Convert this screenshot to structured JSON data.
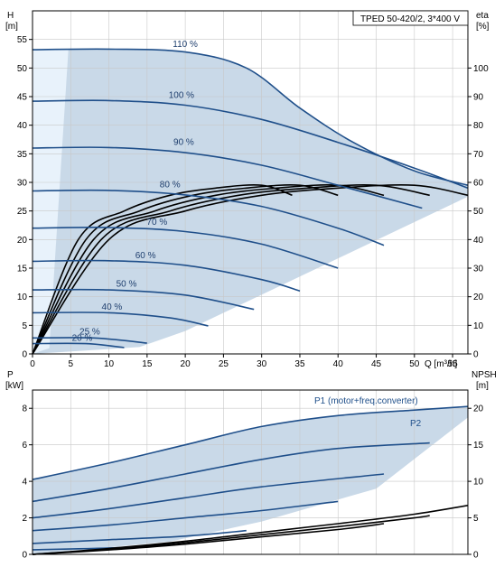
{
  "chart_data": [
    {
      "type": "line",
      "title": "TPED 50-420/2, 3*400 V",
      "ylabel": "H",
      "yunit": "[m]",
      "y2label": "eta",
      "y2unit": "[%]",
      "xlabel": "Q [m³/h]",
      "xlim": [
        0,
        57
      ],
      "ylim": [
        0,
        60
      ],
      "y2lim": [
        0,
        120
      ],
      "xticks": [
        "0",
        "5",
        "10",
        "15",
        "20",
        "25",
        "30",
        "35",
        "40",
        "45",
        "50",
        "55"
      ],
      "yticks": [
        "0",
        "5",
        "10",
        "15",
        "20",
        "25",
        "30",
        "35",
        "40",
        "45",
        "50",
        "55"
      ],
      "y2ticks": [
        "0",
        "10",
        "20",
        "30",
        "40",
        "50",
        "60",
        "70",
        "80",
        "90",
        "100"
      ],
      "grid": true,
      "operating_area": {
        "color": "#c9d9e8",
        "light_zone_color": "#e8f2fb"
      },
      "head_curves": [
        {
          "label": "110 %",
          "x": [
            0,
            10,
            20,
            28,
            35,
            42,
            50,
            57
          ],
          "y": [
            53.2,
            53.3,
            52.8,
            50,
            43,
            37,
            32,
            29.5
          ]
        },
        {
          "label": "100 %",
          "x": [
            0,
            10,
            20,
            30,
            40,
            50,
            57
          ],
          "y": [
            44.2,
            44.3,
            43.5,
            41,
            37,
            32.5,
            29
          ]
        },
        {
          "label": "90 %",
          "x": [
            0,
            10,
            20,
            30,
            40,
            51
          ],
          "y": [
            36,
            36.1,
            35.2,
            33,
            29.5,
            25.5
          ]
        },
        {
          "label": "80 %",
          "x": [
            0,
            10,
            20,
            30,
            40,
            46
          ],
          "y": [
            28.5,
            28.6,
            27.8,
            25.8,
            22,
            19
          ]
        },
        {
          "label": "70 %",
          "x": [
            0,
            10,
            20,
            30,
            40
          ],
          "y": [
            22,
            22.1,
            21.4,
            19.2,
            15
          ]
        },
        {
          "label": "60 %",
          "x": [
            0,
            10,
            20,
            30,
            35
          ],
          "y": [
            16.2,
            16.3,
            15.5,
            13,
            11
          ]
        },
        {
          "label": "50 %",
          "x": [
            0,
            10,
            20,
            29
          ],
          "y": [
            11.2,
            11.2,
            10.3,
            7.8
          ]
        },
        {
          "label": "40 %",
          "x": [
            0,
            10,
            18,
            23
          ],
          "y": [
            7.2,
            7.2,
            6.3,
            4.9
          ]
        },
        {
          "label": "25 %",
          "x": [
            0,
            8,
            15
          ],
          "y": [
            2.8,
            2.8,
            1.9
          ]
        },
        {
          "label": "20 %",
          "x": [
            0,
            7,
            12
          ],
          "y": [
            1.8,
            1.8,
            1.1
          ]
        }
      ],
      "eta_curves": [
        {
          "x": [
            0,
            10,
            20,
            30,
            40,
            50,
            57
          ],
          "y": [
            0,
            40,
            50,
            55.5,
            58,
            59,
            55.5
          ]
        },
        {
          "x": [
            0,
            9,
            18,
            27,
            36,
            45,
            52
          ],
          "y": [
            0,
            40,
            50,
            55.5,
            58,
            59,
            55.5
          ]
        },
        {
          "x": [
            0,
            8,
            16,
            24,
            32,
            40,
            46
          ],
          "y": [
            0,
            40,
            50,
            55.5,
            58,
            59,
            55.5
          ]
        },
        {
          "x": [
            0,
            7,
            14,
            21,
            28,
            35,
            40
          ],
          "y": [
            0,
            40,
            50,
            55.5,
            58,
            59,
            55.5
          ]
        },
        {
          "x": [
            0,
            6,
            12,
            18,
            24,
            30,
            34
          ],
          "y": [
            0,
            40,
            50,
            55.5,
            58,
            59,
            55.5
          ]
        }
      ]
    },
    {
      "type": "line",
      "ylabel": "P",
      "yunit": "[kW]",
      "y2label": "NPSH",
      "y2unit": "[m]",
      "xlim": [
        0,
        57
      ],
      "ylim": [
        0,
        9
      ],
      "y2lim": [
        0,
        22.5
      ],
      "yticks": [
        "0",
        "2",
        "4",
        "6",
        "8"
      ],
      "y2ticks": [
        "0",
        "5",
        "10",
        "15",
        "20"
      ],
      "grid": true,
      "legend_labels": [
        "P1 (motor+freq.converter)",
        "P2"
      ],
      "p1_curves": [
        {
          "x": [
            0,
            10,
            20,
            30,
            40,
            50,
            57
          ],
          "y": [
            4.1,
            5,
            6,
            7,
            7.6,
            7.9,
            8.1
          ]
        },
        {
          "x": [
            0,
            10,
            20,
            30,
            40,
            52
          ],
          "y": [
            2.9,
            3.6,
            4.4,
            5.2,
            5.8,
            6.1
          ]
        },
        {
          "x": [
            0,
            10,
            20,
            30,
            46
          ],
          "y": [
            2,
            2.5,
            3.1,
            3.7,
            4.4
          ]
        },
        {
          "x": [
            0,
            10,
            20,
            30,
            40
          ],
          "y": [
            1.3,
            1.6,
            2,
            2.4,
            2.9
          ]
        },
        {
          "x": [
            0,
            10,
            20,
            28
          ],
          "y": [
            0.6,
            0.8,
            1,
            1.3
          ]
        },
        {
          "x": [
            0,
            10,
            18
          ],
          "y": [
            0.25,
            0.35,
            0.5
          ]
        }
      ],
      "npsh_curves": [
        {
          "x": [
            0,
            10,
            20,
            30,
            40,
            50,
            57
          ],
          "y": [
            0,
            0.8,
            1.8,
            3,
            4.2,
            5.5,
            6.7
          ]
        },
        {
          "x": [
            0,
            10,
            20,
            30,
            40,
            50,
            52
          ],
          "y": [
            0,
            0.7,
            1.6,
            2.7,
            3.8,
            5,
            5.3
          ]
        },
        {
          "x": [
            0,
            10,
            20,
            30,
            40,
            46
          ],
          "y": [
            0,
            0.6,
            1.4,
            2.4,
            3.4,
            4.2
          ]
        }
      ]
    }
  ]
}
